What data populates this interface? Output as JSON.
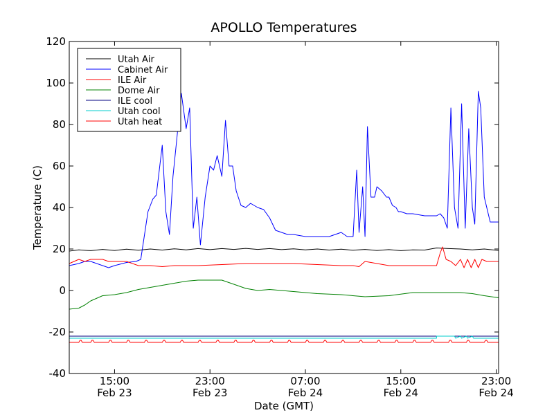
{
  "chart_data": {
    "type": "line",
    "title": "APOLLO Temperatures",
    "xlabel": "Date (GMT)",
    "ylabel": "Temperature (C)",
    "ylim": [
      -40,
      120
    ],
    "xlim": [
      11.2,
      47.2
    ],
    "y_ticks": [
      {
        "value": 120,
        "label": "120"
      },
      {
        "value": 100,
        "label": "100"
      },
      {
        "value": 80,
        "label": "80"
      },
      {
        "value": 60,
        "label": "60"
      },
      {
        "value": 40,
        "label": "40"
      },
      {
        "value": 20,
        "label": "20"
      },
      {
        "value": 0,
        "label": "0"
      },
      {
        "value": -20,
        "label": "-20"
      },
      {
        "value": -40,
        "label": "-40"
      }
    ],
    "x_ticks": [
      {
        "value": 15,
        "time": "15:00",
        "date": "Feb 23"
      },
      {
        "value": 23,
        "time": "23:00",
        "date": "Feb 23"
      },
      {
        "value": 31,
        "time": "07:00",
        "date": "Feb 24"
      },
      {
        "value": 39,
        "time": "15:00",
        "date": "Feb 24"
      },
      {
        "value": 47,
        "time": "23:00",
        "date": "Feb 24"
      }
    ],
    "x_unit": "hours since Feb 23 00:00 GMT",
    "legend_position": "top-left",
    "series": [
      {
        "name": "Utah Air",
        "color": "#000000",
        "x": [
          11.2,
          12.0,
          13.0,
          14.0,
          15.0,
          16.0,
          17.0,
          18.0,
          19.0,
          20.0,
          21.0,
          22.0,
          23.0,
          24.0,
          25.0,
          26.0,
          27.0,
          28.0,
          29.0,
          30.0,
          31.0,
          32.0,
          33.0,
          34.0,
          35.0,
          36.0,
          37.0,
          38.0,
          39.0,
          40.0,
          41.0,
          42.0,
          43.0,
          44.0,
          45.0,
          46.0,
          47.2
        ],
        "y": [
          19,
          19.6,
          19.2,
          19.8,
          19.3,
          19.9,
          19.4,
          20.0,
          19.5,
          20.1,
          19.6,
          20.2,
          19.7,
          20.2,
          19.8,
          20.3,
          19.8,
          20.2,
          19.7,
          20.1,
          19.6,
          20.0,
          19.5,
          19.9,
          19.4,
          19.8,
          19.3,
          19.7,
          19.2,
          19.6,
          19.5,
          20.5,
          20.2,
          20.0,
          19.6,
          20.0,
          19.3
        ]
      },
      {
        "name": "Cabinet Air",
        "color": "#0000ff",
        "x": [
          11.2,
          12.0,
          12.5,
          13.0,
          14.0,
          14.5,
          15.0,
          16.0,
          16.8,
          17.2,
          17.8,
          18.2,
          18.5,
          19.0,
          19.3,
          19.6,
          19.9,
          20.2,
          20.6,
          21.0,
          21.3,
          21.6,
          21.9,
          22.2,
          22.6,
          23.0,
          23.3,
          23.6,
          24.0,
          24.3,
          24.6,
          24.9,
          25.2,
          25.6,
          26.0,
          26.4,
          27.0,
          27.5,
          28.0,
          28.5,
          29.0,
          29.5,
          30.0,
          31.0,
          32.0,
          33.0,
          34.0,
          34.5,
          35.0,
          35.3,
          35.5,
          35.8,
          36.0,
          36.2,
          36.5,
          36.8,
          37.0,
          37.4,
          37.8,
          38.0,
          38.3,
          38.6,
          38.8,
          39.0,
          39.5,
          40.0,
          41.0,
          42.0,
          42.3,
          42.6,
          42.9,
          43.2,
          43.5,
          43.8,
          44.1,
          44.4,
          44.7,
          45.0,
          45.2,
          45.5,
          45.7,
          46.0,
          46.5,
          47.2
        ],
        "y": [
          12,
          13,
          14,
          14,
          12,
          11,
          12,
          13.5,
          14,
          15,
          38,
          44,
          46,
          70,
          38,
          27,
          55,
          72,
          95,
          78,
          88,
          30,
          45,
          22,
          45,
          60,
          58,
          65,
          55,
          82,
          60,
          60,
          48,
          41,
          40,
          42,
          40,
          39,
          35,
          29,
          28,
          27,
          27,
          26,
          26,
          26,
          28,
          26,
          26,
          58,
          28,
          50,
          26,
          79,
          45,
          45,
          50,
          48,
          45,
          45,
          41,
          40,
          38,
          38,
          37,
          37,
          36,
          36,
          37,
          35,
          30,
          88,
          40,
          30,
          90,
          30,
          78,
          40,
          32,
          96,
          88,
          45,
          33,
          33
        ]
      },
      {
        "name": "ILE Air",
        "color": "#ff0000",
        "x": [
          11.2,
          12.0,
          12.5,
          13.0,
          14.0,
          14.5,
          15.0,
          16.0,
          17.0,
          18.0,
          19.0,
          20.0,
          22.0,
          24.0,
          26.0,
          28.0,
          30.0,
          32.0,
          34.0,
          35.0,
          35.5,
          36.0,
          38.0,
          40.0,
          42.0,
          42.3,
          42.5,
          42.8,
          43.2,
          43.6,
          44.0,
          44.3,
          44.6,
          44.9,
          45.2,
          45.5,
          45.8,
          46.2,
          46.6,
          47.2
        ],
        "y": [
          13,
          15,
          14,
          15,
          15,
          14,
          14,
          14,
          12,
          12,
          11.5,
          12,
          12,
          12.5,
          13,
          13,
          13,
          12.5,
          12,
          12,
          11.5,
          14,
          12,
          12,
          12,
          18,
          21,
          15,
          14,
          12,
          15,
          11,
          15,
          11,
          15,
          11,
          15,
          14,
          14,
          14
        ]
      },
      {
        "name": "Dome Air",
        "color": "#008000",
        "x": [
          11.2,
          12.0,
          12.5,
          13.0,
          14.0,
          15.0,
          16.0,
          17.0,
          18.0,
          19.0,
          20.0,
          21.0,
          22.0,
          23.0,
          24.0,
          25.0,
          26.0,
          27.0,
          28.0,
          30.0,
          32.0,
          34.0,
          36.0,
          38.0,
          40.0,
          42.0,
          43.0,
          44.0,
          45.0,
          46.0,
          47.2
        ],
        "y": [
          -9,
          -8.5,
          -7,
          -5,
          -2.5,
          -2,
          -1,
          0.5,
          1.5,
          2.5,
          3.5,
          4.5,
          5,
          5,
          5,
          3,
          1,
          0,
          0.5,
          -0.5,
          -1.5,
          -2,
          -3,
          -2.5,
          -1,
          -1,
          -1,
          -1,
          -1.5,
          -2.5,
          -3.5
        ]
      },
      {
        "name": "ILE cool",
        "color": "#000080",
        "x": [
          11.2,
          47.2
        ],
        "y": [
          -22,
          -22
        ]
      },
      {
        "name": "Utah cool",
        "color": "#00cccc",
        "x": [
          11.2,
          42.0,
          42.0,
          43.5,
          43.6,
          44.0,
          44.1,
          44.5,
          44.6,
          45.0,
          45.1,
          47.2
        ],
        "y": [
          -23,
          -23,
          -22,
          -22,
          -23,
          -22,
          -23,
          -22,
          -23,
          -22,
          -23,
          -23
        ]
      },
      {
        "name": "Utah heat",
        "color": "#ff0000",
        "x": [
          11.2,
          12.0,
          12.1,
          12.2,
          12.3,
          13.0,
          13.1,
          13.2,
          13.3,
          14.5,
          14.6,
          14.7,
          14.8,
          16.0,
          16.1,
          16.2,
          16.3,
          17.5,
          17.6,
          17.7,
          17.8,
          19.0,
          19.1,
          19.2,
          19.3,
          20.5,
          20.6,
          20.7,
          20.8,
          22.0,
          22.1,
          22.2,
          22.3,
          23.5,
          23.6,
          23.7,
          23.8,
          25.0,
          25.1,
          25.2,
          25.3,
          26.5,
          26.6,
          26.7,
          26.8,
          28.0,
          28.1,
          28.2,
          28.3,
          29.5,
          29.6,
          29.7,
          29.8,
          31.0,
          31.1,
          31.2,
          31.3,
          32.5,
          32.6,
          32.7,
          32.8,
          34.0,
          34.1,
          34.2,
          34.3,
          35.5,
          35.6,
          35.7,
          35.8,
          37.0,
          37.1,
          37.2,
          37.3,
          38.5,
          38.6,
          38.7,
          38.8,
          40.0,
          40.1,
          40.2,
          40.3,
          41.5,
          41.6,
          41.7,
          41.8,
          43.0,
          43.1,
          43.2,
          43.3,
          44.5,
          44.6,
          44.7,
          44.8,
          46.0,
          46.1,
          46.2,
          46.3,
          47.2
        ],
        "y": [
          -25,
          -25,
          -24,
          -24,
          -25,
          -25,
          -24,
          -24,
          -25,
          -25,
          -24,
          -24,
          -25,
          -25,
          -24,
          -24,
          -25,
          -25,
          -24,
          -24,
          -25,
          -25,
          -24,
          -24,
          -25,
          -25,
          -24,
          -24,
          -25,
          -25,
          -24,
          -24,
          -25,
          -25,
          -24,
          -24,
          -25,
          -25,
          -24,
          -24,
          -25,
          -25,
          -24,
          -24,
          -25,
          -25,
          -24,
          -24,
          -25,
          -25,
          -24,
          -24,
          -25,
          -25,
          -24,
          -24,
          -25,
          -25,
          -24,
          -24,
          -25,
          -25,
          -24,
          -24,
          -25,
          -25,
          -24,
          -24,
          -25,
          -25,
          -24,
          -24,
          -25,
          -25,
          -24,
          -24,
          -25,
          -25,
          -24,
          -24,
          -25,
          -25,
          -24,
          -24,
          -25,
          -25,
          -24,
          -24,
          -25,
          -25,
          -24,
          -24,
          -25,
          -25,
          -24,
          -24,
          -25,
          -25
        ]
      }
    ]
  }
}
